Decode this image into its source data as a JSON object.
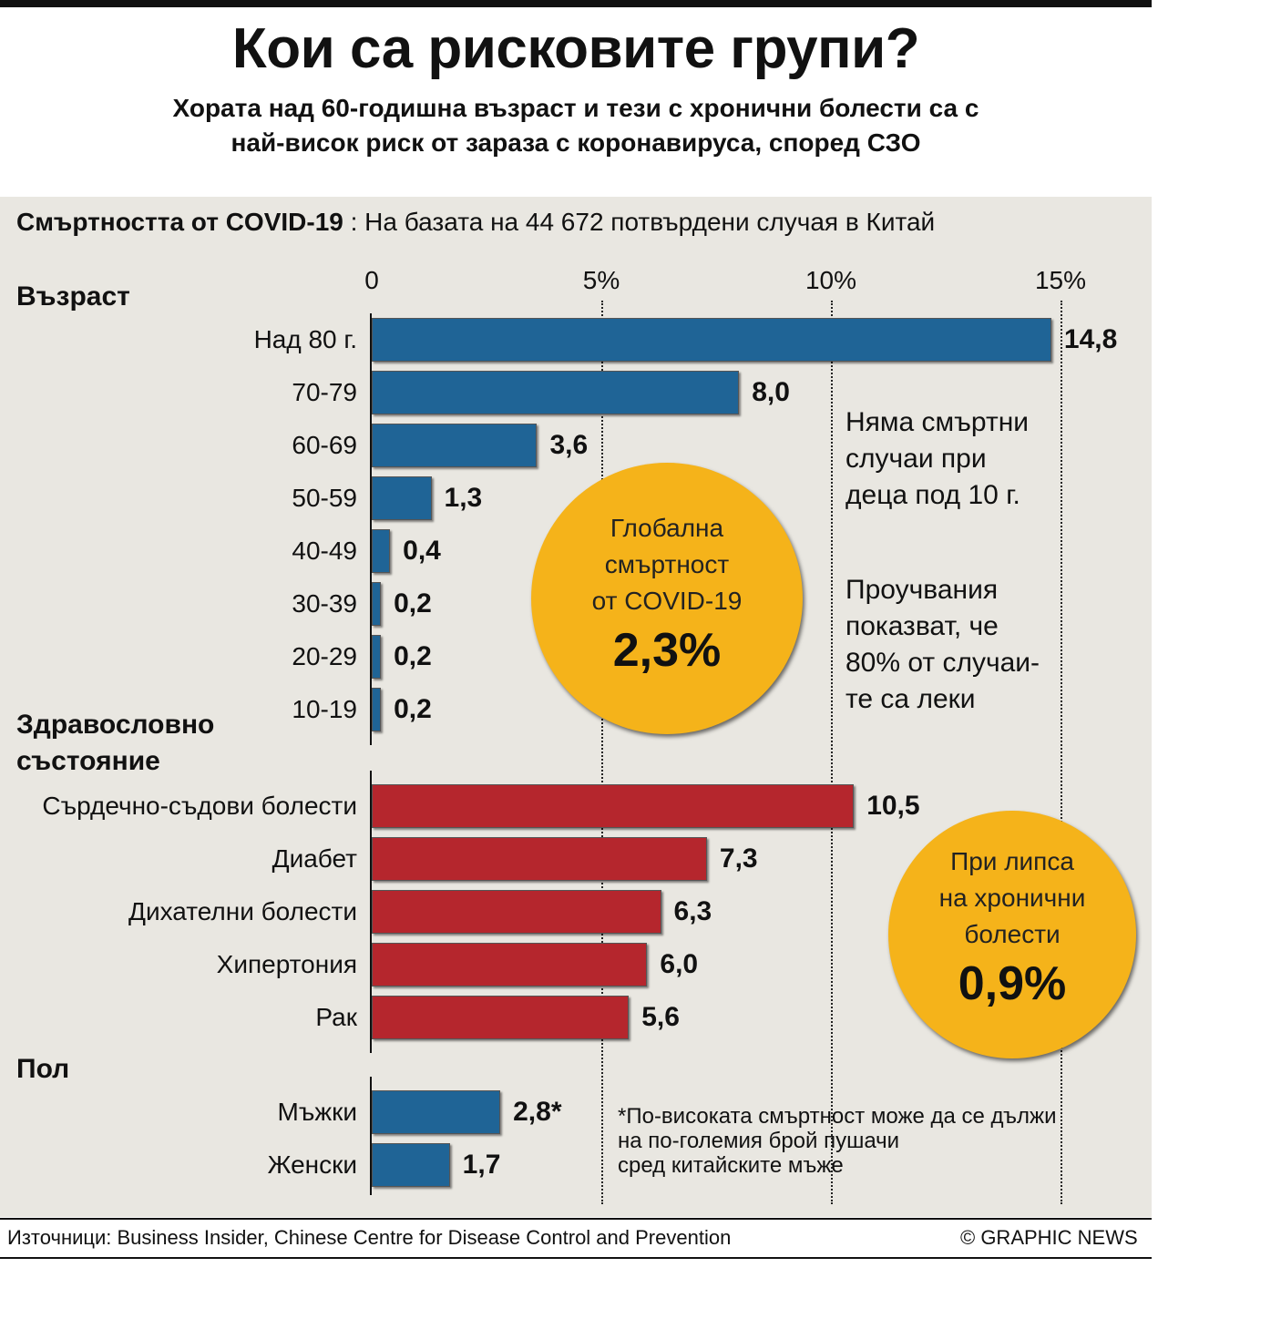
{
  "title": "Кои са рисковите групи?",
  "subtitle_line1": "Хората над 60-годишна възраст и тези с хронични болести са с",
  "subtitle_line2": "най-висок риск от зараза с коронавируса, според СЗО",
  "stats_head_bold": "Смъртността от COVID-19",
  "stats_head_rest": " : На базата на 44 672 потвърдени случая в Китай",
  "sections": {
    "age": "Възраст",
    "health_line1": "Здравословно",
    "health_line2": "състояние",
    "sex": "Пол"
  },
  "notes": {
    "no_children": [
      "Няма смъртни",
      "случаи при",
      "деца под 10 г."
    ],
    "mild": [
      "Проучвания",
      "показват, че",
      "80% от случаи-",
      "те са леки"
    ]
  },
  "global_circle": {
    "lines": [
      "Глобална",
      "смъртност",
      "от COVID-19"
    ],
    "value": "2,3%"
  },
  "chronic_circle": {
    "lines": [
      "При липса",
      "на хронични",
      "болести"
    ],
    "value": "0,9%"
  },
  "footnote": [
    "*По-високата смъртност може да се дължи",
    "на по-големия брой пушачи",
    "сред китайските мъже"
  ],
  "source": "Източници: Business Insider, Chinese Centre for Disease Control and Prevention",
  "copyright": "© GRAPHIC NEWS",
  "colors": {
    "blue_bar": "#1f6496",
    "red_bar": "#b5262d",
    "circle": "#f5b31a",
    "panel": "#e9e7e1"
  },
  "chart_data": {
    "type": "bar",
    "orientation": "horizontal",
    "xlim": [
      0,
      15
    ],
    "x_ticks": [
      {
        "value": 0,
        "label": "0"
      },
      {
        "value": 5,
        "label": "5%"
      },
      {
        "value": 10,
        "label": "10%"
      },
      {
        "value": 15,
        "label": "15%"
      }
    ],
    "groups": [
      {
        "name": "Възраст",
        "color": "blue",
        "categories": [
          "Над 80 г.",
          "70-79",
          "60-69",
          "50-59",
          "40-49",
          "30-39",
          "20-29",
          "10-19"
        ],
        "values": [
          14.8,
          8.0,
          3.6,
          1.3,
          0.4,
          0.2,
          0.2,
          0.2
        ],
        "labels": [
          "14,8",
          "8,0",
          "3,6",
          "1,3",
          "0,4",
          "0,2",
          "0,2",
          "0,2"
        ]
      },
      {
        "name": "Здравословно състояние",
        "color": "red",
        "categories": [
          "Сърдечно-съдови болести",
          "Диабет",
          "Дихателни болести",
          "Хипертония",
          "Рак"
        ],
        "values": [
          10.5,
          7.3,
          6.3,
          6.0,
          5.6
        ],
        "labels": [
          "10,5",
          "7,3",
          "6,3",
          "6,0",
          "5,6"
        ]
      },
      {
        "name": "Пол",
        "color": "blue",
        "categories": [
          "Мъжки",
          "Женски"
        ],
        "values": [
          2.8,
          1.7
        ],
        "labels": [
          "2,8*",
          "1,7"
        ]
      }
    ]
  }
}
